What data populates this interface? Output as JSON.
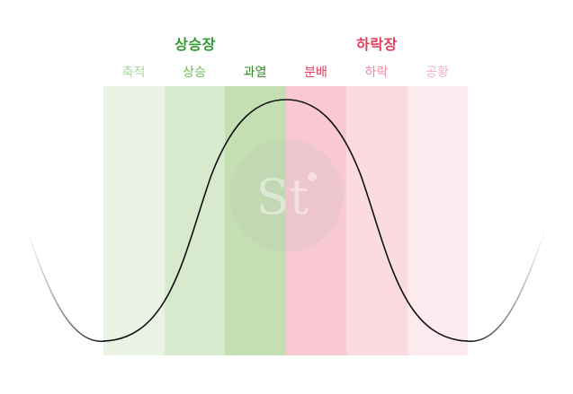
{
  "groups": {
    "bull": {
      "label": "상승장",
      "color": "#2e9a2e"
    },
    "bear": {
      "label": "하락장",
      "color": "#e0405e"
    }
  },
  "phases": [
    {
      "id": "accumulation",
      "label": "축적",
      "text_color": "#a8d39a",
      "band_color": "#ebf3e4"
    },
    {
      "id": "markup",
      "label": "상승",
      "text_color": "#6fb85c",
      "band_color": "#d8eacd"
    },
    {
      "id": "excess",
      "label": "과열",
      "text_color": "#2f8a24",
      "band_color": "#c4e0b2"
    },
    {
      "id": "distribution",
      "label": "분배",
      "text_color": "#e0405e",
      "band_color": "#f8c9d2"
    },
    {
      "id": "markdown",
      "label": "하락",
      "text_color": "#ec8a9c",
      "band_color": "#fbdbe0"
    },
    {
      "id": "panic",
      "label": "공황",
      "text_color": "#f2b3bf",
      "band_color": "#fdeaee"
    }
  ],
  "watermark": {
    "text": "St"
  }
}
